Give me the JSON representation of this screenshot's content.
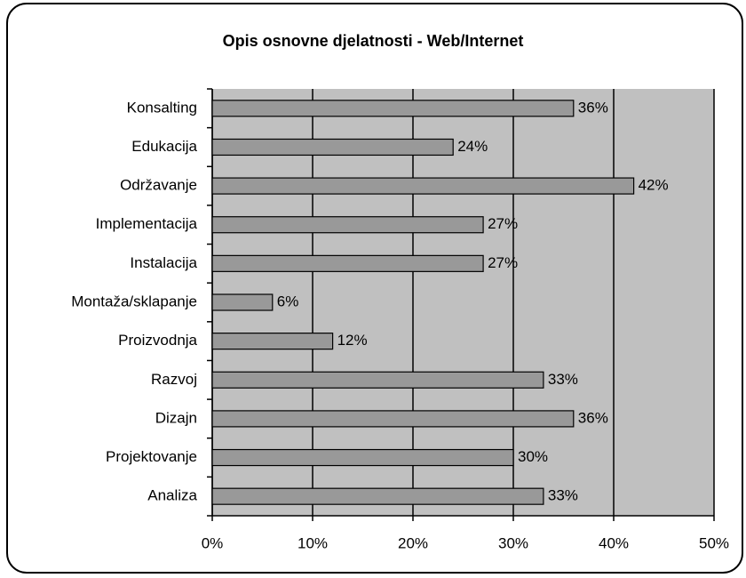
{
  "chart_data": {
    "type": "bar",
    "title": "Opis osnovne djelatnosti - Web/Internet",
    "categories": [
      "Konsalting",
      "Edukacija",
      "Održavanje",
      "Implementacija",
      "Instalacija",
      "Montaža/sklapanje",
      "Proizvodnja",
      "Razvoj",
      "Dizajn",
      "Projektovanje",
      "Analiza"
    ],
    "values": [
      36,
      24,
      42,
      27,
      27,
      6,
      12,
      33,
      36,
      30,
      33
    ],
    "value_labels": [
      "36%",
      "24%",
      "42%",
      "27%",
      "27%",
      "6%",
      "12%",
      "33%",
      "36%",
      "30%",
      "33%"
    ],
    "color": "#999999",
    "plot_background": "#c0c0c0",
    "xlim": [
      0,
      50
    ],
    "xticks": [
      {
        "value": 0,
        "label": "0%"
      },
      {
        "value": 10,
        "label": "10%"
      },
      {
        "value": 20,
        "label": "20%"
      },
      {
        "value": 30,
        "label": "30%"
      },
      {
        "value": 40,
        "label": "40%"
      },
      {
        "value": 50,
        "label": "50%"
      }
    ],
    "grid": true
  }
}
